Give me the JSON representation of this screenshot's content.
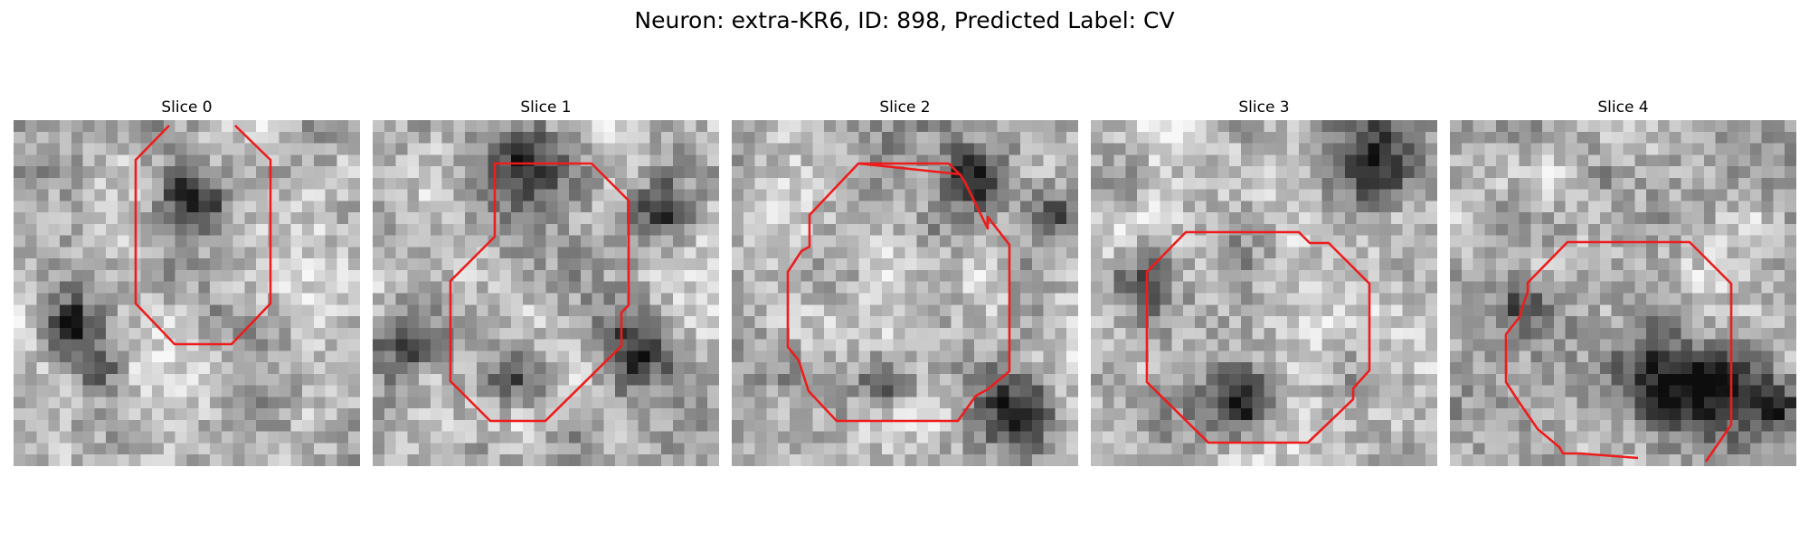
{
  "figure": {
    "title": "Neuron: extra-KR6, ID: 898, Predicted Label: CV"
  },
  "contour_color": "#ee1c1c",
  "slices": [
    {
      "title": "Slice 0",
      "seed": 11,
      "dark_blobs": [
        [
          0.5,
          0.21,
          0.06,
          0.55
        ],
        [
          0.15,
          0.58,
          0.05,
          0.6
        ],
        [
          0.22,
          0.7,
          0.05,
          0.5
        ]
      ]
    },
    {
      "title": "Slice 1",
      "seed": 23,
      "dark_blobs": [
        [
          0.42,
          0.1,
          0.08,
          0.55
        ],
        [
          0.82,
          0.25,
          0.06,
          0.6
        ],
        [
          0.08,
          0.62,
          0.06,
          0.45
        ],
        [
          0.4,
          0.72,
          0.06,
          0.45
        ],
        [
          0.75,
          0.65,
          0.07,
          0.45
        ]
      ]
    },
    {
      "title": "Slice 2",
      "seed": 37,
      "dark_blobs": [
        [
          0.67,
          0.15,
          0.06,
          0.55
        ],
        [
          0.93,
          0.25,
          0.05,
          0.45
        ],
        [
          0.8,
          0.82,
          0.08,
          0.55
        ],
        [
          0.42,
          0.75,
          0.05,
          0.35
        ]
      ]
    },
    {
      "title": "Slice 3",
      "seed": 41,
      "dark_blobs": [
        [
          0.78,
          0.12,
          0.09,
          0.6
        ],
        [
          0.42,
          0.78,
          0.07,
          0.65
        ],
        [
          0.12,
          0.45,
          0.07,
          0.35
        ],
        [
          0.1,
          0.15,
          0.05,
          0.3
        ]
      ]
    },
    {
      "title": "Slice 4",
      "seed": 53,
      "dark_blobs": [
        [
          0.72,
          0.78,
          0.1,
          0.6
        ],
        [
          0.93,
          0.8,
          0.05,
          0.5
        ],
        [
          0.18,
          0.52,
          0.06,
          0.4
        ],
        [
          0.55,
          0.75,
          0.1,
          0.3
        ]
      ]
    }
  ]
}
